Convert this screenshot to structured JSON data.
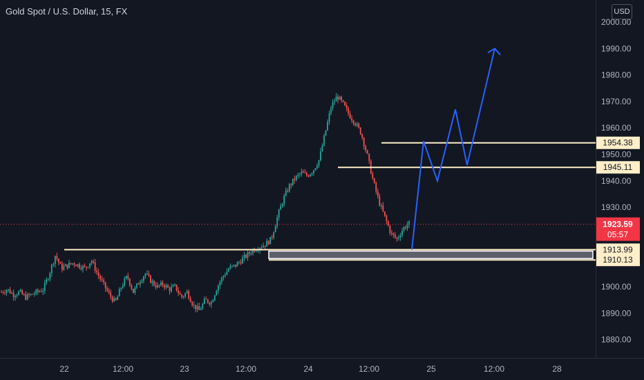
{
  "header": {
    "symbol_title": "Gold Spot / U.S. Dollar, 15, FX",
    "currency": "USD"
  },
  "chart_data": {
    "type": "candlestick",
    "title": "Gold Spot / U.S. Dollar, 15, FX",
    "ylim": [
      1873.5,
      2003
    ],
    "y_ticks": [
      "2000.00",
      "1990.00",
      "1980.00",
      "1970.00",
      "1960.00",
      "1950.00",
      "1940.00",
      "1930.00",
      "1900.00",
      "1890.00",
      "1880.00"
    ],
    "x_ticks": [
      "22",
      "12:00",
      "23",
      "12:00",
      "24",
      "12:00",
      "25",
      "12:00",
      "28"
    ],
    "current_price": {
      "value": 1923.59,
      "label": "1923.59",
      "countdown": "05:57"
    },
    "horizontal_levels": [
      {
        "label": "1954.38",
        "value": 1954.38
      },
      {
        "label": "1945.11",
        "value": 1945.11
      },
      {
        "label": "1913.99",
        "value": 1913.99
      },
      {
        "label": "1910.13",
        "value": 1910.13
      }
    ],
    "demand_zone": {
      "top": 1913.99,
      "bottom": 1910.13
    },
    "projected_path": [
      1914,
      1955,
      1940,
      1967,
      1946,
      1990
    ],
    "price_path": [
      1898,
      1899,
      1897,
      1898,
      1896,
      1897,
      1898,
      1899,
      1905,
      1912,
      1907,
      1908,
      1909,
      1908,
      1907,
      1910,
      1905,
      1901,
      1897,
      1894,
      1900,
      1904,
      1898,
      1902,
      1905,
      1902,
      1900,
      1901,
      1899,
      1900,
      1896,
      1898,
      1893,
      1891,
      1895,
      1894,
      1900,
      1904,
      1907,
      1908,
      1910,
      1912,
      1914,
      1915,
      1916,
      1918,
      1926,
      1933,
      1938,
      1941,
      1943,
      1942,
      1944,
      1948,
      1958,
      1968,
      1972,
      1969,
      1965,
      1962,
      1958,
      1950,
      1940,
      1932,
      1926,
      1920,
      1918,
      1922,
      1924
    ]
  }
}
